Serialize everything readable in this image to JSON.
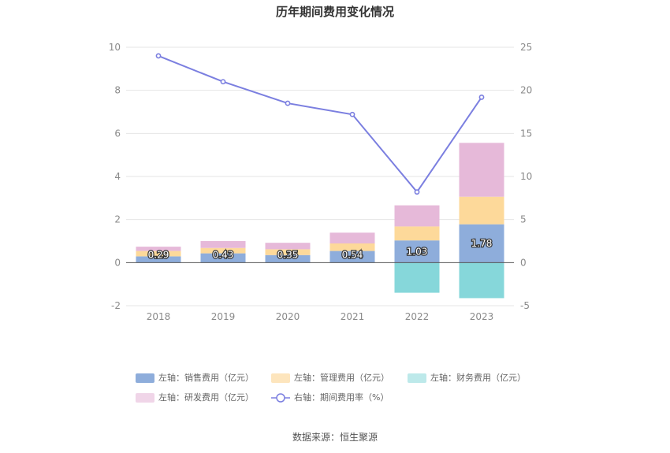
{
  "chart_data": {
    "type": "bar",
    "title": "历年期间费用变化情况",
    "categories": [
      "2018",
      "2019",
      "2020",
      "2021",
      "2022",
      "2023"
    ],
    "stacked": true,
    "series": [
      {
        "name": "左轴：销售费用（亿元）",
        "axis": "left",
        "type": "bar",
        "color": "#8eaddb",
        "values": [
          0.29,
          0.43,
          0.35,
          0.54,
          1.03,
          1.78
        ],
        "labels": [
          "0.29",
          "0.43",
          "0.35",
          "0.54",
          "1.03",
          "1.78"
        ]
      },
      {
        "name": "左轴：管理费用（亿元）",
        "axis": "left",
        "type": "bar",
        "color": "#fdd99a",
        "values": [
          0.25,
          0.25,
          0.27,
          0.35,
          0.65,
          1.28
        ]
      },
      {
        "name": "左轴：财务费用（亿元）",
        "axis": "left",
        "type": "bar",
        "color": "#86d7da",
        "values": [
          0.0,
          0.0,
          0.0,
          0.0,
          -1.4,
          -1.65
        ]
      },
      {
        "name": "左轴：研发费用（亿元）",
        "axis": "left",
        "type": "bar",
        "color": "#e6b9d9",
        "values": [
          0.2,
          0.32,
          0.3,
          0.5,
          0.98,
          2.5
        ]
      },
      {
        "name": "右轴：期间费用率（%）",
        "axis": "right",
        "type": "line",
        "color": "#7b7fe0",
        "values": [
          24.0,
          21.0,
          18.5,
          17.2,
          8.2,
          19.2
        ]
      }
    ],
    "y_left": {
      "ticks": [
        "10",
        "8",
        "6",
        "4",
        "2",
        "0",
        "-2"
      ],
      "min": -2,
      "max": 10
    },
    "y_right": {
      "ticks": [
        "25",
        "20",
        "15",
        "10",
        "5",
        "0",
        "-5"
      ],
      "min": -5,
      "max": 25
    },
    "grid": true,
    "legend_position": "bottom"
  },
  "legend": {
    "items": [
      {
        "label": "左轴：销售费用（亿元）",
        "color": "#8eaddb",
        "kind": "bar"
      },
      {
        "label": "左轴：管理费用（亿元）",
        "color": "#fde5bd",
        "kind": "bar"
      },
      {
        "label": "左轴：财务费用（亿元）",
        "color": "#bde9ea",
        "kind": "bar"
      },
      {
        "label": "左轴：研发费用（亿元）",
        "color": "#f0d5e8",
        "kind": "bar"
      },
      {
        "label": "右轴：期间费用率（%）",
        "color": "#7b7fe0",
        "kind": "line"
      }
    ]
  },
  "source": "数据来源：恒生聚源"
}
